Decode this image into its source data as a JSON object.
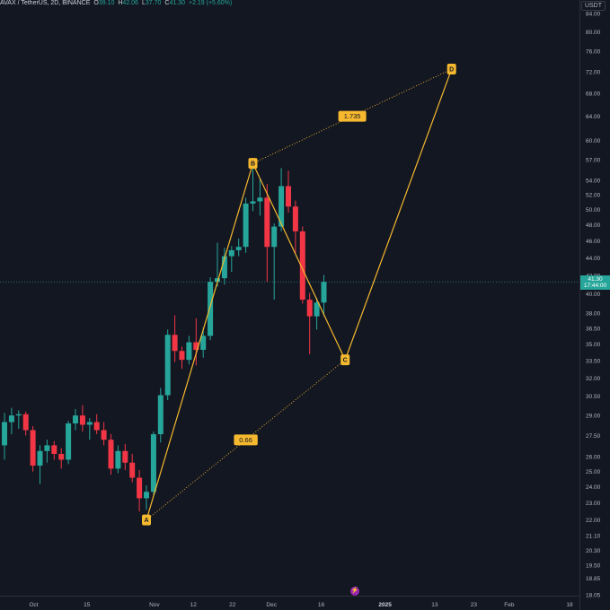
{
  "header": {
    "symbol": "AVAX / TetherUS, 2D, BINANCE",
    "open_label": "O",
    "open": "39.10",
    "high_label": "H",
    "high": "42.06",
    "low_label": "L",
    "low": "37.70",
    "close_label": "C",
    "close": "41.30",
    "change": "+2.19 (+5.60%)"
  },
  "price_axis": {
    "unit": "USDT",
    "current_price": "41.30",
    "countdown": "17:44:00",
    "scale": "log"
  },
  "colors": {
    "background": "#131722",
    "up": "#26a69a",
    "down": "#f23645",
    "pattern": "#f5b82e",
    "grid": "#1e222d"
  },
  "footer": {
    "icon": "lightning-icon"
  },
  "chart_data": {
    "type": "candlestick",
    "title": "",
    "xlabel": "",
    "ylabel": "",
    "ylim": [
      18.05,
      84.0
    ],
    "grid": false,
    "y_ticks": [
      "84.00",
      "80.00",
      "76.00",
      "72.00",
      "68.00",
      "64.00",
      "60.00",
      "57.00",
      "54.00",
      "52.00",
      "50.00",
      "48.00",
      "46.00",
      "44.00",
      "42.00",
      "40.00",
      "38.00",
      "36.50",
      "35.00",
      "33.50",
      "32.00",
      "30.50",
      "29.00",
      "27.50",
      "26.00",
      "25.00",
      "24.00",
      "23.00",
      "22.00",
      "21.10",
      "20.30",
      "19.50",
      "18.85",
      "18.05"
    ],
    "x_ticks": [
      {
        "label": "Oct",
        "bold": false
      },
      {
        "label": "15",
        "bold": false
      },
      {
        "label": "Nov",
        "bold": false
      },
      {
        "label": "12",
        "bold": false
      },
      {
        "label": "22",
        "bold": false
      },
      {
        "label": "Dec",
        "bold": false
      },
      {
        "label": "16",
        "bold": false
      },
      {
        "label": "2025",
        "bold": true
      },
      {
        "label": "13",
        "bold": false
      },
      {
        "label": "23",
        "bold": false
      },
      {
        "label": "Feb",
        "bold": false
      },
      {
        "label": "18",
        "bold": false
      }
    ],
    "candles": [
      {
        "o": 26.8,
        "h": 29.2,
        "l": 25.8,
        "c": 28.5
      },
      {
        "o": 28.5,
        "h": 29.6,
        "l": 27.6,
        "c": 29.0
      },
      {
        "o": 29.0,
        "h": 29.4,
        "l": 28.0,
        "c": 29.1
      },
      {
        "o": 29.1,
        "h": 29.3,
        "l": 27.5,
        "c": 27.9
      },
      {
        "o": 27.9,
        "h": 28.2,
        "l": 25.0,
        "c": 25.4
      },
      {
        "o": 25.4,
        "h": 26.8,
        "l": 24.2,
        "c": 26.4
      },
      {
        "o": 26.4,
        "h": 27.2,
        "l": 25.6,
        "c": 26.8
      },
      {
        "o": 26.8,
        "h": 27.1,
        "l": 25.8,
        "c": 26.2
      },
      {
        "o": 26.2,
        "h": 26.6,
        "l": 25.2,
        "c": 25.8
      },
      {
        "o": 25.8,
        "h": 28.6,
        "l": 25.5,
        "c": 28.4
      },
      {
        "o": 28.4,
        "h": 29.5,
        "l": 27.9,
        "c": 29.0
      },
      {
        "o": 29.0,
        "h": 29.8,
        "l": 27.8,
        "c": 28.3
      },
      {
        "o": 28.3,
        "h": 28.8,
        "l": 27.2,
        "c": 28.5
      },
      {
        "o": 28.5,
        "h": 29.1,
        "l": 27.6,
        "c": 27.9
      },
      {
        "o": 27.9,
        "h": 28.5,
        "l": 26.8,
        "c": 27.2
      },
      {
        "o": 27.2,
        "h": 27.6,
        "l": 24.8,
        "c": 25.2
      },
      {
        "o": 25.2,
        "h": 26.8,
        "l": 24.9,
        "c": 26.4
      },
      {
        "o": 26.4,
        "h": 26.9,
        "l": 25.1,
        "c": 25.6
      },
      {
        "o": 25.6,
        "h": 26.2,
        "l": 24.3,
        "c": 24.6
      },
      {
        "o": 24.6,
        "h": 25.1,
        "l": 22.5,
        "c": 23.3
      },
      {
        "o": 23.3,
        "h": 24.1,
        "l": 22.6,
        "c": 23.7
      },
      {
        "o": 23.7,
        "h": 27.8,
        "l": 23.5,
        "c": 27.6
      },
      {
        "o": 27.6,
        "h": 31.2,
        "l": 27.0,
        "c": 30.6
      },
      {
        "o": 30.6,
        "h": 36.4,
        "l": 30.2,
        "c": 35.9
      },
      {
        "o": 35.9,
        "h": 37.8,
        "l": 33.4,
        "c": 34.4
      },
      {
        "o": 34.4,
        "h": 34.8,
        "l": 32.8,
        "c": 33.6
      },
      {
        "o": 33.6,
        "h": 35.8,
        "l": 33.2,
        "c": 35.2
      },
      {
        "o": 35.2,
        "h": 37.5,
        "l": 33.1,
        "c": 34.5
      },
      {
        "o": 34.5,
        "h": 36.6,
        "l": 33.8,
        "c": 35.8
      },
      {
        "o": 35.8,
        "h": 41.8,
        "l": 35.4,
        "c": 41.3
      },
      {
        "o": 41.3,
        "h": 45.8,
        "l": 40.8,
        "c": 41.7
      },
      {
        "o": 41.7,
        "h": 45.2,
        "l": 41.0,
        "c": 44.2
      },
      {
        "o": 44.2,
        "h": 45.4,
        "l": 42.4,
        "c": 44.9
      },
      {
        "o": 44.9,
        "h": 46.3,
        "l": 44.2,
        "c": 45.3
      },
      {
        "o": 45.3,
        "h": 51.6,
        "l": 44.6,
        "c": 50.8
      },
      {
        "o": 50.8,
        "h": 56.5,
        "l": 49.8,
        "c": 51.1
      },
      {
        "o": 51.1,
        "h": 54.2,
        "l": 49.2,
        "c": 51.6
      },
      {
        "o": 51.6,
        "h": 53.5,
        "l": 41.3,
        "c": 45.3
      },
      {
        "o": 45.3,
        "h": 48.2,
        "l": 39.4,
        "c": 47.8
      },
      {
        "o": 47.8,
        "h": 55.8,
        "l": 47.2,
        "c": 53.2
      },
      {
        "o": 53.2,
        "h": 55.4,
        "l": 49.6,
        "c": 50.4
      },
      {
        "o": 50.4,
        "h": 51.2,
        "l": 44.6,
        "c": 47.2
      },
      {
        "o": 47.2,
        "h": 47.8,
        "l": 39.0,
        "c": 39.4
      },
      {
        "o": 39.4,
        "h": 40.1,
        "l": 34.1,
        "c": 37.7
      },
      {
        "o": 37.7,
        "h": 39.6,
        "l": 36.4,
        "c": 39.1
      },
      {
        "o": 39.1,
        "h": 42.06,
        "l": 37.7,
        "c": 41.3
      }
    ],
    "pattern": {
      "name": "XABCD",
      "points": [
        {
          "label": "A",
          "date_index": 20,
          "price": 22.0
        },
        {
          "label": "B",
          "date_index": 35,
          "price": 56.5
        },
        {
          "label": "C",
          "date_index": 48,
          "price": 33.6
        },
        {
          "label": "D",
          "date_index": 63,
          "price": 72.5
        }
      ],
      "ratios": [
        {
          "label": "1.735",
          "between": [
            "B",
            "D"
          ]
        },
        {
          "label": "0.66",
          "between": [
            "A",
            "C"
          ]
        }
      ]
    }
  }
}
